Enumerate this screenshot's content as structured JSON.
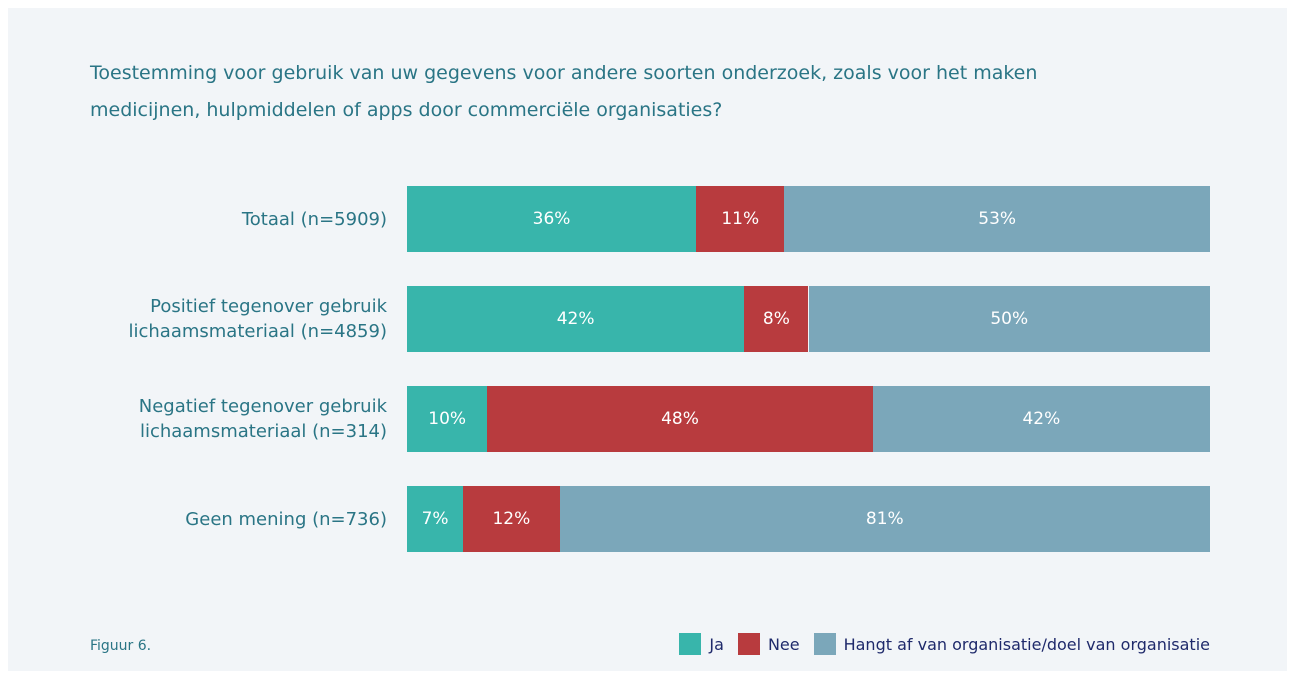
{
  "chart_data": {
    "type": "stacked-bar-horizontal",
    "title": [
      "Toestemming voor gebruik van uw gegevens voor andere soorten onderzoek, zoals voor het maken",
      "medicijnen, hulpmiddelen of apps door commerciële organisaties?"
    ],
    "categories": [
      "Totaal (n=5909)",
      "Positief tegenover gebruik lichaamsmateriaal (n=4859)",
      "Negatief tegenover gebruik lichaamsmateriaal (n=314)",
      "Geen mening (n=736)"
    ],
    "series": [
      {
        "name": "Ja",
        "color": "#38b5ab",
        "values": [
          36,
          42,
          10,
          7
        ],
        "value_labels": [
          "36%",
          "42%",
          "10%",
          "7%"
        ]
      },
      {
        "name": "Nee",
        "color": "#b83b3e",
        "values": [
          11,
          8,
          48,
          12
        ],
        "value_labels": [
          "11%",
          "8%",
          "48%",
          "12%"
        ]
      },
      {
        "name": "Hangt af van organisatie/doel van organisatie",
        "color": "#7ba7ba",
        "values": [
          53,
          50,
          42,
          81
        ],
        "value_labels": [
          "53%",
          "50%",
          "42%",
          "81%"
        ]
      }
    ],
    "xlim": [
      0,
      100
    ],
    "legend": "bottom-right",
    "caption": "Figuur 6."
  }
}
